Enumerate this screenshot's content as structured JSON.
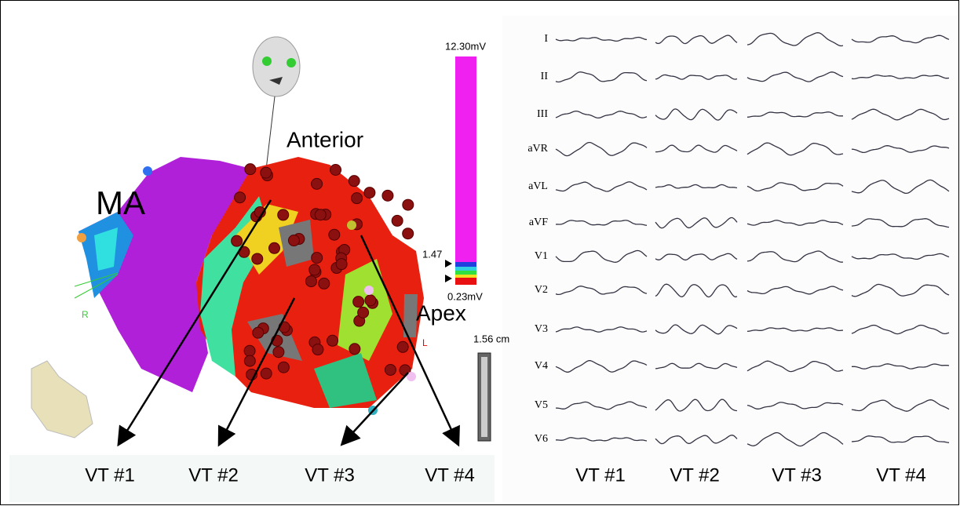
{
  "map": {
    "labels": {
      "ma": "MA",
      "anterior": "Anterior",
      "apex": "Apex",
      "r": "R",
      "l": "L"
    },
    "scale": {
      "max": "12.30mV",
      "mid": "1.47",
      "min": "0.23mV"
    },
    "ruler": "1.56 cm",
    "vt_labels": [
      "VT #1",
      "VT #2",
      "VT #3",
      "VT #4"
    ]
  },
  "ecg": {
    "leads": [
      "I",
      "II",
      "III",
      "aVR",
      "aVL",
      "aVF",
      "V1",
      "V2",
      "V3",
      "V4",
      "V5",
      "V6"
    ],
    "vt_labels": [
      "VT #1",
      "VT #2",
      "VT #3",
      "VT #4"
    ]
  }
}
